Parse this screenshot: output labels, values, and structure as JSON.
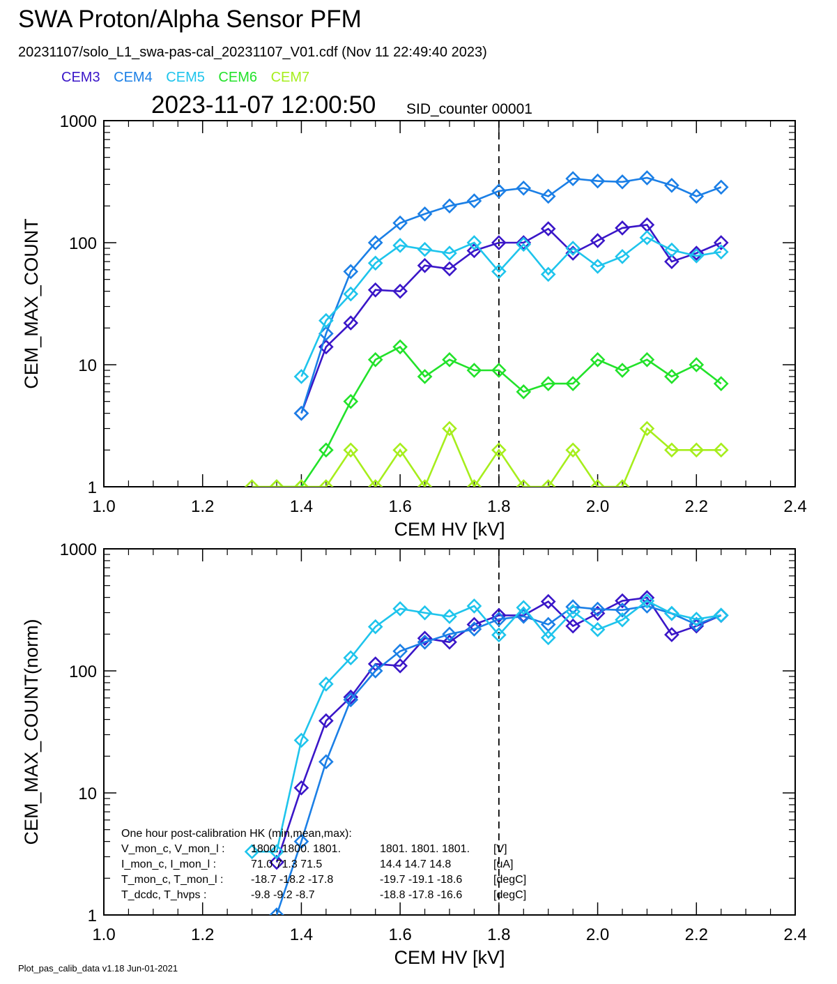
{
  "header": {
    "title": "SWA Proton/Alpha Sensor PFM",
    "subtitle": "20231107/solo_L1_swa-pas-cal_20231107_V01.cdf  (Nov 11 22:49:40 2023)",
    "timestamp": "2023-11-07 12:00:50",
    "sid_counter": "SID_counter 00001"
  },
  "legend": [
    {
      "label": "CEM3",
      "color": "#3a16c8"
    },
    {
      "label": "CEM4",
      "color": "#1b7fe6"
    },
    {
      "label": "CEM5",
      "color": "#1ec4ec"
    },
    {
      "label": "CEM6",
      "color": "#22e22a"
    },
    {
      "label": "CEM7",
      "color": "#a6ee1c"
    }
  ],
  "footer": "Plot_pas_calib_data v1.18 Jun-01-2021",
  "hk_box": {
    "heading": "One hour post-calibration HK (min,mean,max):",
    "rows": [
      {
        "label": "V_mon_c, V_mon_l :",
        "c": "1800.  1800.  1801.",
        "l": "1801.  1801.  1801.",
        "unit": "[V]"
      },
      {
        "label": "I_mon_c,  I_mon_l :",
        "c": "71.0   71.3   71.5",
        "l": "14.4   14.7   14.8",
        "unit": "[uA]"
      },
      {
        "label": "T_mon_c, T_mon_l :",
        "c": "-18.7  -18.2  -17.8",
        "l": "-19.7  -19.1  -18.6",
        "unit": "[degC]"
      },
      {
        "label": "T_dcdc,    T_hvps :",
        "c": "-9.8   -9.2   -8.7",
        "l": "-18.8  -17.8  -16.6",
        "unit": "[degC]"
      }
    ]
  },
  "chart_data": [
    {
      "type": "line",
      "xlabel": "CEM HV [kV]",
      "ylabel": "CEM_MAX_COUNT",
      "xlim": [
        1.0,
        2.4
      ],
      "ylim": [
        1,
        1000
      ],
      "yscale": "log",
      "xticks": [
        "1.0",
        "1.2",
        "1.4",
        "1.6",
        "1.8",
        "2.0",
        "2.2",
        "2.4"
      ],
      "yticks": [
        "1",
        "10",
        "100",
        "1000"
      ],
      "marker_line_x": 1.8,
      "x": [
        1.3,
        1.35,
        1.4,
        1.45,
        1.5,
        1.55,
        1.6,
        1.65,
        1.7,
        1.75,
        1.8,
        1.85,
        1.9,
        1.95,
        2.0,
        2.05,
        2.1,
        2.15,
        2.2,
        2.25
      ],
      "series": [
        {
          "name": "CEM3",
          "color": "#3a16c8",
          "values": [
            null,
            null,
            4,
            14,
            22,
            41,
            40,
            65,
            61,
            86,
            100,
            100,
            130,
            82,
            104,
            132,
            140,
            70,
            82,
            100
          ]
        },
        {
          "name": "CEM4",
          "color": "#1b7fe6",
          "values": [
            null,
            null,
            4,
            18,
            58,
            100,
            145,
            172,
            200,
            220,
            265,
            280,
            240,
            335,
            320,
            315,
            340,
            295,
            240,
            285
          ]
        },
        {
          "name": "CEM5",
          "color": "#1ec4ec",
          "values": [
            null,
            null,
            8,
            23,
            38,
            68,
            95,
            88,
            82,
            100,
            58,
            97,
            55,
            90,
            64,
            77,
            110,
            87,
            78,
            84
          ]
        },
        {
          "name": "CEM6",
          "color": "#22e22a",
          "values": [
            null,
            1,
            1,
            2,
            5,
            11,
            14,
            8,
            11,
            9,
            9,
            6,
            7,
            7,
            11,
            9,
            11,
            8,
            10,
            7
          ]
        },
        {
          "name": "CEM7",
          "color": "#a6ee1c",
          "values": [
            1,
            1,
            1,
            1,
            2,
            1,
            2,
            1,
            3,
            1,
            2,
            1,
            1,
            2,
            1,
            1,
            3,
            2,
            2,
            2
          ]
        }
      ]
    },
    {
      "type": "line",
      "xlabel": "CEM HV [kV]",
      "ylabel": "CEM_MAX_COUNT(norm)",
      "xlim": [
        1.0,
        2.4
      ],
      "ylim": [
        1,
        1000
      ],
      "yscale": "log",
      "xticks": [
        "1.0",
        "1.2",
        "1.4",
        "1.6",
        "1.8",
        "2.0",
        "2.2",
        "2.4"
      ],
      "yticks": [
        "1",
        "10",
        "100",
        "1000"
      ],
      "marker_line_x": 1.8,
      "x": [
        1.3,
        1.35,
        1.4,
        1.45,
        1.5,
        1.55,
        1.6,
        1.65,
        1.7,
        1.75,
        1.8,
        1.85,
        1.9,
        1.95,
        2.0,
        2.05,
        2.1,
        2.15,
        2.2,
        2.25
      ],
      "series": [
        {
          "name": "CEM3",
          "color": "#3a16c8",
          "values": [
            null,
            2.7,
            11,
            39,
            61,
            114,
            110,
            185,
            172,
            240,
            285,
            285,
            370,
            233,
            296,
            375,
            398,
            198,
            233,
            285
          ]
        },
        {
          "name": "CEM4",
          "color": "#1b7fe6",
          "values": [
            null,
            1.0,
            4,
            18,
            58,
            100,
            145,
            172,
            200,
            220,
            265,
            280,
            240,
            335,
            320,
            315,
            340,
            295,
            240,
            285
          ]
        },
        {
          "name": "CEM5",
          "color": "#1ec4ec",
          "values": [
            3.3,
            3.3,
            27,
            78,
            128,
            230,
            323,
            299,
            279,
            340,
            197,
            330,
            187,
            306,
            218,
            262,
            374,
            296,
            265,
            286
          ]
        }
      ]
    }
  ]
}
